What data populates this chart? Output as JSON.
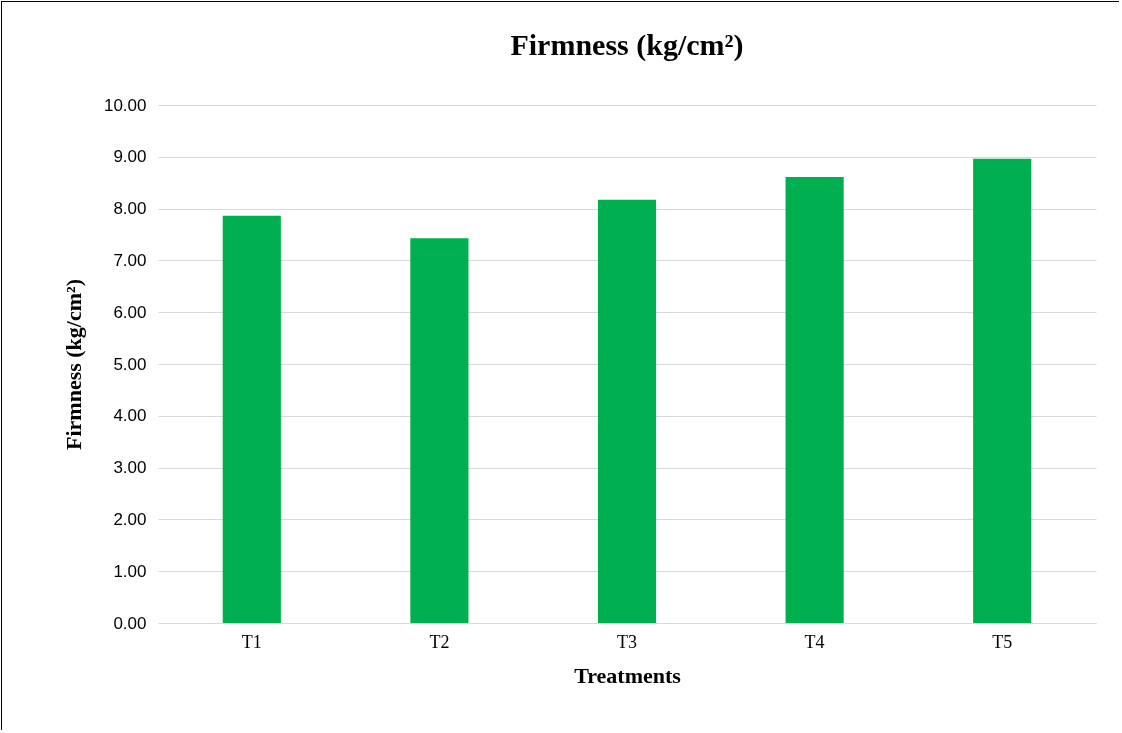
{
  "chart_data": {
    "type": "bar",
    "title": "Firmness (kg/cm²)",
    "xlabel": "Treatments",
    "ylabel": "Firmness (kg/cm²)",
    "categories": [
      "T1",
      "T2",
      "T3",
      "T4",
      "T5"
    ],
    "values": [
      7.86,
      7.43,
      8.17,
      8.61,
      8.96
    ],
    "color": "#00b050",
    "ylim": [
      0,
      10
    ],
    "yticks": [
      {
        "value": 0,
        "label": "0.00"
      },
      {
        "value": 1,
        "label": "1.00"
      },
      {
        "value": 2,
        "label": "2.00"
      },
      {
        "value": 3,
        "label": "3.00"
      },
      {
        "value": 4,
        "label": "4.00"
      },
      {
        "value": 5,
        "label": "5.00"
      },
      {
        "value": 6,
        "label": "6.00"
      },
      {
        "value": 7,
        "label": "7.00"
      },
      {
        "value": 8,
        "label": "8.00"
      },
      {
        "value": 9,
        "label": "9.00"
      },
      {
        "value": 10,
        "label": "10.00"
      }
    ],
    "grid": "y"
  }
}
